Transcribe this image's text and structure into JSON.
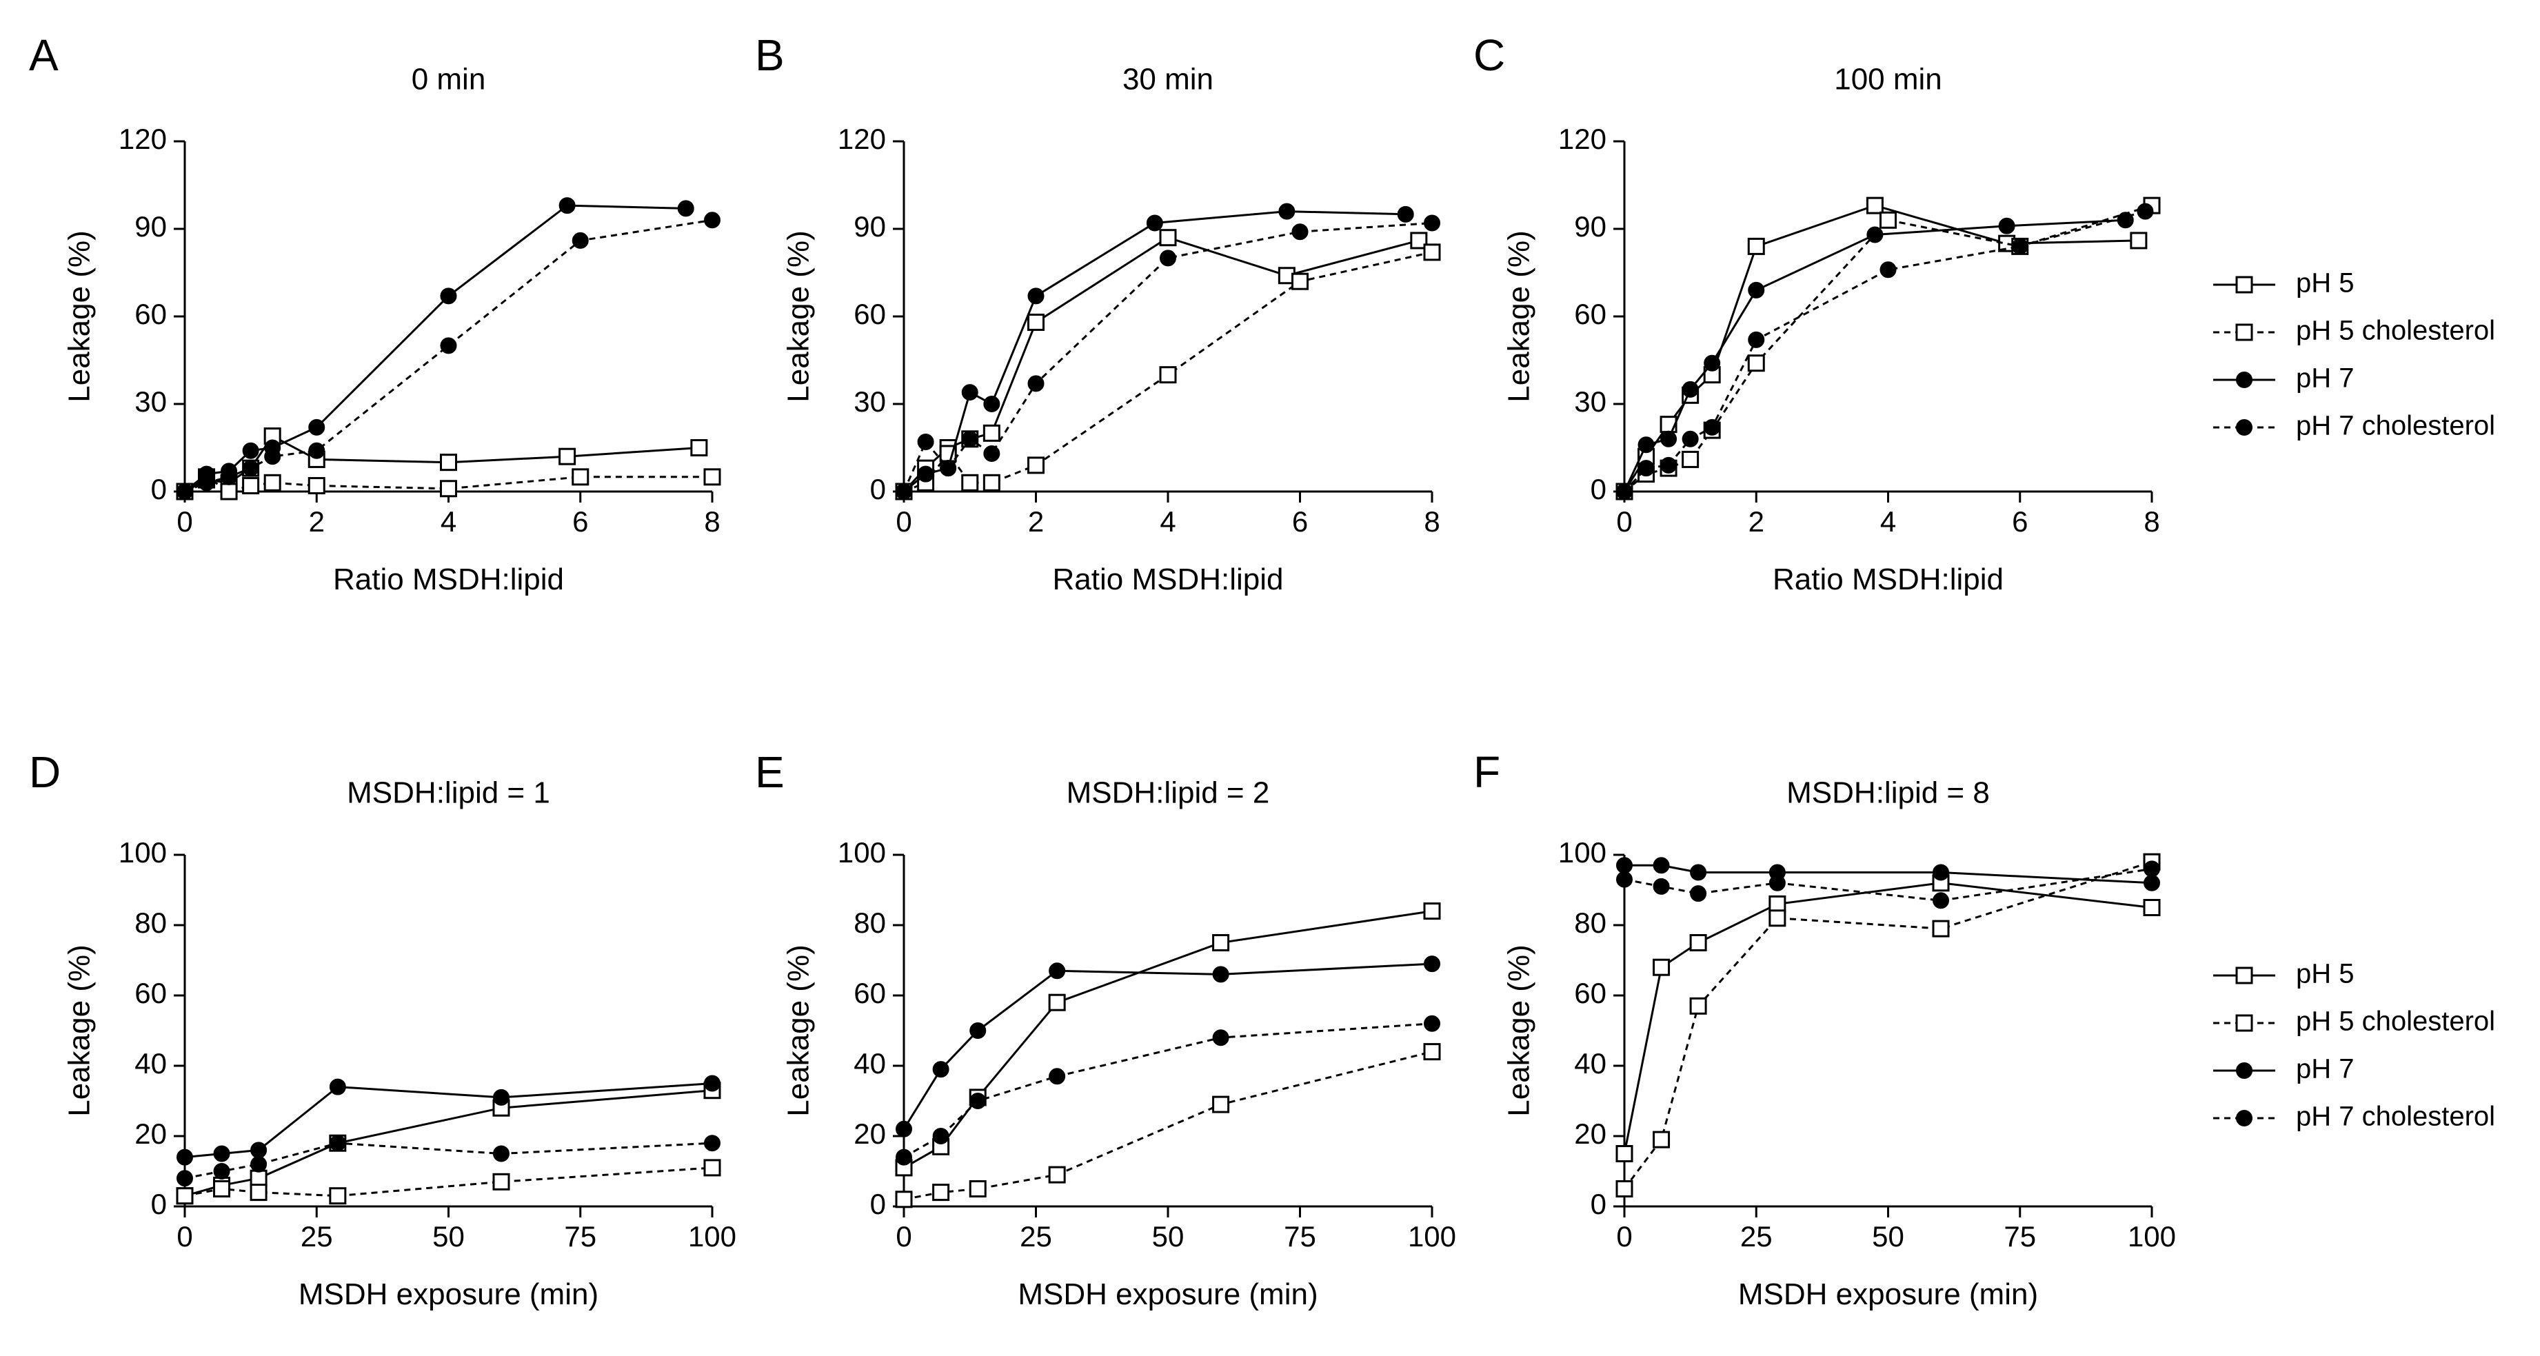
{
  "legend": [
    {
      "name": "pH 5",
      "marker": "square",
      "dashed": false
    },
    {
      "name": "pH 5 cholesterol",
      "marker": "square",
      "dashed": true
    },
    {
      "name": "pH 7",
      "marker": "circle",
      "dashed": false
    },
    {
      "name": "pH 7 cholesterol",
      "marker": "circle",
      "dashed": true
    }
  ],
  "colors": {
    "ink": "#000000",
    "open_fill": "#ffffff"
  },
  "chart_data": [
    {
      "letter": "A",
      "type": "line",
      "title": "0 min",
      "xlabel": "Ratio MSDH:lipid",
      "ylabel": "Leakage (%)",
      "xlim": [
        0,
        8
      ],
      "ylim": [
        0,
        120
      ],
      "xticks": [
        0,
        2,
        4,
        6,
        8
      ],
      "yticks": [
        0,
        30,
        60,
        90,
        120
      ],
      "series": [
        {
          "name": "pH 5",
          "x": [
            0,
            0.33,
            0.67,
            1,
            1.33,
            2,
            4,
            5.8,
            7.8
          ],
          "y": [
            0,
            4,
            3,
            8,
            19,
            11,
            10,
            12,
            15
          ]
        },
        {
          "name": "pH 5 cholesterol",
          "x": [
            0,
            0.33,
            0.67,
            1,
            1.33,
            2,
            4,
            6,
            8
          ],
          "y": [
            0,
            5,
            0,
            2,
            3,
            2,
            1,
            5,
            5
          ]
        },
        {
          "name": "pH 7",
          "x": [
            0,
            0.33,
            0.67,
            1,
            1.33,
            2,
            4,
            5.8,
            7.6
          ],
          "y": [
            0,
            6,
            7,
            14,
            15,
            22,
            67,
            98,
            97
          ]
        },
        {
          "name": "pH 7 cholesterol",
          "x": [
            0,
            0.33,
            0.67,
            1,
            1.33,
            2,
            4,
            6,
            8
          ],
          "y": [
            0,
            3,
            5,
            8,
            12,
            14,
            50,
            86,
            93
          ]
        }
      ]
    },
    {
      "letter": "B",
      "type": "line",
      "title": "30 min",
      "xlabel": "Ratio MSDH:lipid",
      "ylabel": "Leakage (%)",
      "xlim": [
        0,
        8
      ],
      "ylim": [
        0,
        120
      ],
      "xticks": [
        0,
        2,
        4,
        6,
        8
      ],
      "yticks": [
        0,
        30,
        60,
        90,
        120
      ],
      "series": [
        {
          "name": "pH 5",
          "x": [
            0,
            0.33,
            0.67,
            1,
            1.33,
            2,
            4,
            5.8,
            7.8
          ],
          "y": [
            0,
            8,
            15,
            18,
            20,
            58,
            87,
            74,
            86
          ]
        },
        {
          "name": "pH 5 cholesterol",
          "x": [
            0,
            0.33,
            0.67,
            1,
            1.33,
            2,
            4,
            6,
            8
          ],
          "y": [
            0,
            3,
            13,
            3,
            3,
            9,
            40,
            72,
            82
          ]
        },
        {
          "name": "pH 7",
          "x": [
            0,
            0.33,
            0.67,
            1,
            1.33,
            2,
            3.8,
            5.8,
            7.6
          ],
          "y": [
            0,
            6,
            8,
            34,
            30,
            67,
            92,
            96,
            95
          ]
        },
        {
          "name": "pH 7 cholesterol",
          "x": [
            0,
            0.33,
            0.67,
            1,
            1.33,
            2,
            4,
            6,
            8
          ],
          "y": [
            0,
            17,
            8,
            18,
            13,
            37,
            80,
            89,
            92
          ]
        }
      ]
    },
    {
      "letter": "C",
      "type": "line",
      "title": "100 min",
      "xlabel": "Ratio MSDH:lipid",
      "ylabel": "Leakage (%)",
      "xlim": [
        0,
        8
      ],
      "ylim": [
        0,
        120
      ],
      "xticks": [
        0,
        2,
        4,
        6,
        8
      ],
      "yticks": [
        0,
        30,
        60,
        90,
        120
      ],
      "series": [
        {
          "name": "pH 5",
          "x": [
            0,
            0.33,
            0.67,
            1,
            1.33,
            2,
            3.8,
            5.8,
            7.8
          ],
          "y": [
            0,
            12,
            23,
            33,
            40,
            84,
            98,
            85,
            86
          ]
        },
        {
          "name": "pH 5 cholesterol",
          "x": [
            0,
            0.33,
            0.67,
            1,
            1.33,
            2,
            4,
            6,
            8
          ],
          "y": [
            0,
            6,
            8,
            11,
            21,
            44,
            93,
            84,
            98
          ]
        },
        {
          "name": "pH 7",
          "x": [
            0,
            0.33,
            0.67,
            1,
            1.33,
            2,
            3.8,
            5.8,
            7.6
          ],
          "y": [
            0,
            16,
            18,
            35,
            44,
            69,
            88,
            91,
            93
          ]
        },
        {
          "name": "pH 7 cholesterol",
          "x": [
            0,
            0.33,
            0.67,
            1,
            1.33,
            2,
            4,
            6,
            7.9
          ],
          "y": [
            0,
            8,
            9,
            18,
            22,
            52,
            76,
            84,
            96
          ]
        }
      ]
    },
    {
      "letter": "D",
      "type": "line",
      "title": "MSDH:lipid = 1",
      "xlabel": "MSDH exposure (min)",
      "ylabel": "Leakage (%)",
      "xlim": [
        0,
        100
      ],
      "ylim": [
        0,
        100
      ],
      "xticks": [
        0,
        25,
        50,
        75,
        100
      ],
      "yticks": [
        0,
        20,
        40,
        60,
        80,
        100
      ],
      "series": [
        {
          "name": "pH 5",
          "x": [
            0,
            7,
            14,
            29,
            60,
            100
          ],
          "y": [
            3,
            6,
            8,
            18,
            28,
            33
          ]
        },
        {
          "name": "pH 5 cholesterol",
          "x": [
            0,
            7,
            14,
            29,
            60,
            100
          ],
          "y": [
            3,
            5,
            4,
            3,
            7,
            11
          ]
        },
        {
          "name": "pH 7",
          "x": [
            0,
            7,
            14,
            29,
            60,
            100
          ],
          "y": [
            14,
            15,
            16,
            34,
            31,
            35
          ]
        },
        {
          "name": "pH 7 cholesterol",
          "x": [
            0,
            7,
            14,
            29,
            60,
            100
          ],
          "y": [
            8,
            10,
            12,
            18,
            15,
            18
          ]
        }
      ]
    },
    {
      "letter": "E",
      "type": "line",
      "title": "MSDH:lipid = 2",
      "xlabel": "MSDH exposure (min)",
      "ylabel": "Leakage (%)",
      "xlim": [
        0,
        100
      ],
      "ylim": [
        0,
        100
      ],
      "xticks": [
        0,
        25,
        50,
        75,
        100
      ],
      "yticks": [
        0,
        20,
        40,
        60,
        80,
        100
      ],
      "series": [
        {
          "name": "pH 5",
          "x": [
            0,
            7,
            14,
            29,
            60,
            100
          ],
          "y": [
            11,
            17,
            31,
            58,
            75,
            84
          ]
        },
        {
          "name": "pH 5 cholesterol",
          "x": [
            0,
            7,
            14,
            29,
            60,
            100
          ],
          "y": [
            2,
            4,
            5,
            9,
            29,
            44
          ]
        },
        {
          "name": "pH 7",
          "x": [
            0,
            7,
            14,
            29,
            60,
            100
          ],
          "y": [
            22,
            39,
            50,
            67,
            66,
            69
          ]
        },
        {
          "name": "pH 7 cholesterol",
          "x": [
            0,
            7,
            14,
            29,
            60,
            100
          ],
          "y": [
            14,
            20,
            30,
            37,
            48,
            52
          ]
        }
      ]
    },
    {
      "letter": "F",
      "type": "line",
      "title": "MSDH:lipid = 8",
      "xlabel": "MSDH exposure (min)",
      "ylabel": "Leakage (%)",
      "xlim": [
        0,
        100
      ],
      "ylim": [
        0,
        100
      ],
      "xticks": [
        0,
        25,
        50,
        75,
        100
      ],
      "yticks": [
        0,
        20,
        40,
        60,
        80,
        100
      ],
      "series": [
        {
          "name": "pH 5",
          "x": [
            0,
            7,
            14,
            29,
            60,
            100
          ],
          "y": [
            15,
            68,
            75,
            86,
            92,
            85
          ]
        },
        {
          "name": "pH 5 cholesterol",
          "x": [
            0,
            7,
            14,
            29,
            60,
            100
          ],
          "y": [
            5,
            19,
            57,
            82,
            79,
            98
          ]
        },
        {
          "name": "pH 7",
          "x": [
            0,
            7,
            14,
            29,
            60,
            100
          ],
          "y": [
            97,
            97,
            95,
            95,
            95,
            92
          ]
        },
        {
          "name": "pH 7 cholesterol",
          "x": [
            0,
            7,
            14,
            29,
            60,
            100
          ],
          "y": [
            93,
            91,
            89,
            92,
            87,
            96
          ]
        }
      ]
    }
  ]
}
